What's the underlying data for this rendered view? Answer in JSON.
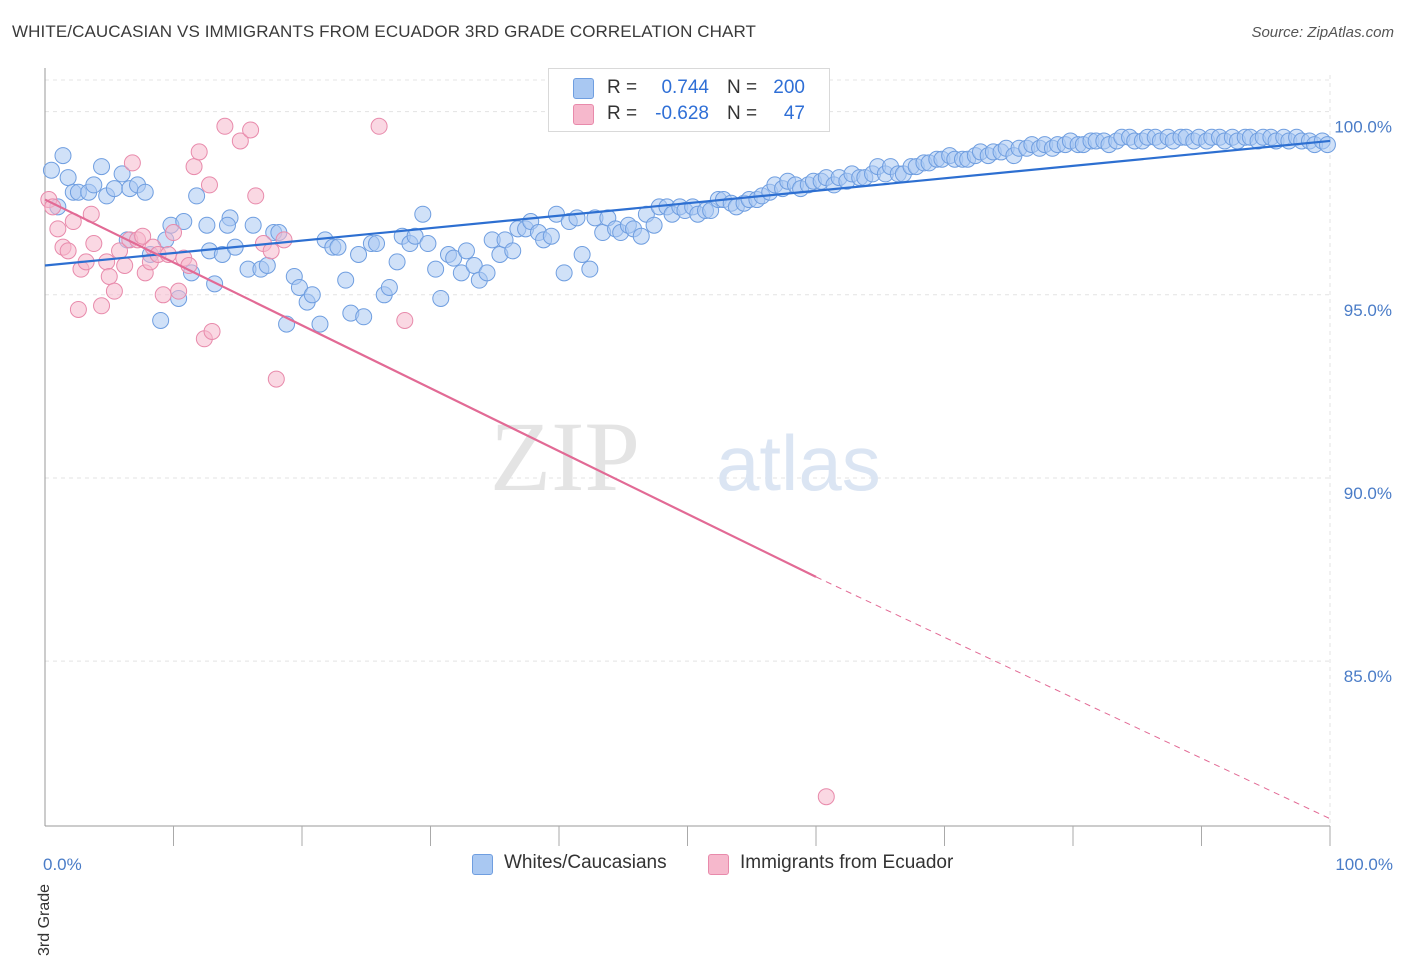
{
  "title": "WHITE/CAUCASIAN VS IMMIGRANTS FROM ECUADOR 3RD GRADE CORRELATION CHART",
  "source": "Source: ZipAtlas.com",
  "watermark": {
    "zip": "ZIP",
    "atlas": "atlas"
  },
  "legend": {
    "rows": [
      {
        "r_label": "R =",
        "r_value": "0.744",
        "n_label": "N =",
        "n_value": "200",
        "color": "#a9c8f2"
      },
      {
        "r_label": "R =",
        "r_value": "-0.628",
        "n_label": "N =",
        "n_value": "47",
        "color": "#f6b8cc"
      }
    ]
  },
  "bottom_legend": [
    {
      "label": "Whites/Caucasians",
      "color": "#a9c8f2"
    },
    {
      "label": "Immigrants from Ecuador",
      "color": "#f6b8cc"
    }
  ],
  "chart_data": {
    "type": "scatter",
    "title": "WHITE/CAUCASIAN VS IMMIGRANTS FROM ECUADOR 3RD GRADE CORRELATION CHART",
    "xlabel": "",
    "ylabel": "3rd Grade",
    "xlim": [
      0,
      100
    ],
    "ylim": [
      80.5,
      101
    ],
    "x_tick_labels": [
      "0.0%",
      "100.0%"
    ],
    "y_ticks": [
      85,
      90,
      95,
      100
    ],
    "y_tick_labels": [
      "85.0%",
      "90.0%",
      "95.0%",
      "100.0%"
    ],
    "grid": true,
    "legend_placement": "top-center",
    "colors": {
      "blue_point_fill": "#a9c8f2",
      "blue_point_stroke": "#6f9ee0",
      "blue_line": "#2d6fd1",
      "pink_point_fill": "#f6b8cc",
      "pink_point_stroke": "#e88aab",
      "pink_line": "#e26a95"
    },
    "series": [
      {
        "name": "Whites/Caucasians",
        "trend": {
          "x": [
            0,
            100
          ],
          "y": [
            95.8,
            99.2
          ]
        },
        "points": [
          [
            0.5,
            98.4
          ],
          [
            1.0,
            97.4
          ],
          [
            1.4,
            98.8
          ],
          [
            1.8,
            98.2
          ],
          [
            2.2,
            97.8
          ],
          [
            2.6,
            97.8
          ],
          [
            3.4,
            97.8
          ],
          [
            3.8,
            98.0
          ],
          [
            4.4,
            98.5
          ],
          [
            4.8,
            97.7
          ],
          [
            5.4,
            97.9
          ],
          [
            6.0,
            98.3
          ],
          [
            6.6,
            97.9
          ],
          [
            7.2,
            98.0
          ],
          [
            7.8,
            97.8
          ],
          [
            6.4,
            96.5
          ],
          [
            8.2,
            96.1
          ],
          [
            9.0,
            94.3
          ],
          [
            9.4,
            96.5
          ],
          [
            9.8,
            96.9
          ],
          [
            10.4,
            94.9
          ],
          [
            10.8,
            97.0
          ],
          [
            11.4,
            95.6
          ],
          [
            11.8,
            97.7
          ],
          [
            12.6,
            96.9
          ],
          [
            12.8,
            96.2
          ],
          [
            13.2,
            95.3
          ],
          [
            13.8,
            96.1
          ],
          [
            14.4,
            97.1
          ],
          [
            14.8,
            96.3
          ],
          [
            15.8,
            95.7
          ],
          [
            16.2,
            96.9
          ],
          [
            16.8,
            95.7
          ],
          [
            17.3,
            95.8
          ],
          [
            17.8,
            96.7
          ],
          [
            18.2,
            96.7
          ],
          [
            18.8,
            94.2
          ],
          [
            19.4,
            95.5
          ],
          [
            19.8,
            95.2
          ],
          [
            20.4,
            94.8
          ],
          [
            20.8,
            95.0
          ],
          [
            21.4,
            94.2
          ],
          [
            21.8,
            96.5
          ],
          [
            22.4,
            96.3
          ],
          [
            22.8,
            96.3
          ],
          [
            23.4,
            95.4
          ],
          [
            23.8,
            94.5
          ],
          [
            24.4,
            96.1
          ],
          [
            24.8,
            94.4
          ],
          [
            25.4,
            96.4
          ],
          [
            25.8,
            96.4
          ],
          [
            26.4,
            95.0
          ],
          [
            26.8,
            95.2
          ],
          [
            27.4,
            95.9
          ],
          [
            27.8,
            96.6
          ],
          [
            28.4,
            96.4
          ],
          [
            28.8,
            96.6
          ],
          [
            29.4,
            97.2
          ],
          [
            29.8,
            96.4
          ],
          [
            30.4,
            95.7
          ],
          [
            30.8,
            94.9
          ],
          [
            31.4,
            96.1
          ],
          [
            31.8,
            96.0
          ],
          [
            32.4,
            95.6
          ],
          [
            32.8,
            96.2
          ],
          [
            33.4,
            95.8
          ],
          [
            33.8,
            95.4
          ],
          [
            34.4,
            95.6
          ],
          [
            34.8,
            96.5
          ],
          [
            35.4,
            96.1
          ],
          [
            35.8,
            96.5
          ],
          [
            36.4,
            96.2
          ],
          [
            36.8,
            96.8
          ],
          [
            37.4,
            96.8
          ],
          [
            37.8,
            97.0
          ],
          [
            38.4,
            96.7
          ],
          [
            38.8,
            96.5
          ],
          [
            39.4,
            96.6
          ],
          [
            39.8,
            97.2
          ],
          [
            40.4,
            95.6
          ],
          [
            40.8,
            97.0
          ],
          [
            41.4,
            97.1
          ],
          [
            41.8,
            96.1
          ],
          [
            42.4,
            95.7
          ],
          [
            42.8,
            97.1
          ],
          [
            43.4,
            96.7
          ],
          [
            43.8,
            97.1
          ],
          [
            44.4,
            96.8
          ],
          [
            44.8,
            96.7
          ],
          [
            45.4,
            96.9
          ],
          [
            45.8,
            96.8
          ],
          [
            46.4,
            96.6
          ],
          [
            46.8,
            97.2
          ],
          [
            47.4,
            96.9
          ],
          [
            47.8,
            97.4
          ],
          [
            48.4,
            97.4
          ],
          [
            48.8,
            97.2
          ],
          [
            49.4,
            97.4
          ],
          [
            49.8,
            97.3
          ],
          [
            50.4,
            97.4
          ],
          [
            50.8,
            97.2
          ],
          [
            51.4,
            97.3
          ],
          [
            51.8,
            97.3
          ],
          [
            52.4,
            97.6
          ],
          [
            52.8,
            97.6
          ],
          [
            53.4,
            97.5
          ],
          [
            53.8,
            97.4
          ],
          [
            54.4,
            97.5
          ],
          [
            54.8,
            97.6
          ],
          [
            55.4,
            97.6
          ],
          [
            55.8,
            97.7
          ],
          [
            56.4,
            97.8
          ],
          [
            56.8,
            98.0
          ],
          [
            57.4,
            97.9
          ],
          [
            57.8,
            98.1
          ],
          [
            58.4,
            98.0
          ],
          [
            58.8,
            97.9
          ],
          [
            59.4,
            98.0
          ],
          [
            59.8,
            98.1
          ],
          [
            60.4,
            98.1
          ],
          [
            60.8,
            98.2
          ],
          [
            61.4,
            98.0
          ],
          [
            61.8,
            98.2
          ],
          [
            62.4,
            98.1
          ],
          [
            62.8,
            98.3
          ],
          [
            63.4,
            98.2
          ],
          [
            63.8,
            98.2
          ],
          [
            64.4,
            98.3
          ],
          [
            64.8,
            98.5
          ],
          [
            65.4,
            98.3
          ],
          [
            65.8,
            98.5
          ],
          [
            66.4,
            98.3
          ],
          [
            66.8,
            98.3
          ],
          [
            67.4,
            98.5
          ],
          [
            67.8,
            98.5
          ],
          [
            68.4,
            98.6
          ],
          [
            68.8,
            98.6
          ],
          [
            69.4,
            98.7
          ],
          [
            69.8,
            98.7
          ],
          [
            70.4,
            98.8
          ],
          [
            70.8,
            98.7
          ],
          [
            71.4,
            98.7
          ],
          [
            71.8,
            98.7
          ],
          [
            72.4,
            98.8
          ],
          [
            72.8,
            98.9
          ],
          [
            73.4,
            98.8
          ],
          [
            73.8,
            98.9
          ],
          [
            74.4,
            98.9
          ],
          [
            74.8,
            99.0
          ],
          [
            75.4,
            98.8
          ],
          [
            75.8,
            99.0
          ],
          [
            76.4,
            99.0
          ],
          [
            76.8,
            99.1
          ],
          [
            77.4,
            99.0
          ],
          [
            77.8,
            99.1
          ],
          [
            78.4,
            99.0
          ],
          [
            78.8,
            99.1
          ],
          [
            79.4,
            99.1
          ],
          [
            79.8,
            99.2
          ],
          [
            80.4,
            99.1
          ],
          [
            80.8,
            99.1
          ],
          [
            81.4,
            99.2
          ],
          [
            81.8,
            99.2
          ],
          [
            82.4,
            99.2
          ],
          [
            82.8,
            99.1
          ],
          [
            83.4,
            99.2
          ],
          [
            83.8,
            99.3
          ],
          [
            84.4,
            99.3
          ],
          [
            84.8,
            99.2
          ],
          [
            85.4,
            99.2
          ],
          [
            85.8,
            99.3
          ],
          [
            86.4,
            99.3
          ],
          [
            86.8,
            99.2
          ],
          [
            87.4,
            99.3
          ],
          [
            87.8,
            99.2
          ],
          [
            88.4,
            99.3
          ],
          [
            88.8,
            99.3
          ],
          [
            89.4,
            99.2
          ],
          [
            89.8,
            99.3
          ],
          [
            90.4,
            99.2
          ],
          [
            90.8,
            99.3
          ],
          [
            91.4,
            99.3
          ],
          [
            91.8,
            99.2
          ],
          [
            92.4,
            99.3
          ],
          [
            92.8,
            99.2
          ],
          [
            93.4,
            99.3
          ],
          [
            93.8,
            99.3
          ],
          [
            94.4,
            99.2
          ],
          [
            94.8,
            99.3
          ],
          [
            95.4,
            99.3
          ],
          [
            95.8,
            99.2
          ],
          [
            96.4,
            99.3
          ],
          [
            96.8,
            99.2
          ],
          [
            97.4,
            99.3
          ],
          [
            97.8,
            99.2
          ],
          [
            98.4,
            99.2
          ],
          [
            98.8,
            99.1
          ],
          [
            99.4,
            99.2
          ],
          [
            99.8,
            99.1
          ],
          [
            14.2,
            96.9
          ]
        ]
      },
      {
        "name": "Immigrants from Ecuador",
        "trend": {
          "x": [
            0,
            60
          ],
          "y": [
            97.6,
            87.3
          ]
        },
        "trend_extension": {
          "x": [
            60,
            100
          ],
          "y": [
            87.3,
            80.7
          ]
        },
        "points": [
          [
            0.3,
            97.6
          ],
          [
            0.6,
            97.4
          ],
          [
            1.0,
            96.8
          ],
          [
            1.4,
            96.3
          ],
          [
            1.8,
            96.2
          ],
          [
            2.2,
            97.0
          ],
          [
            2.6,
            94.6
          ],
          [
            2.8,
            95.7
          ],
          [
            3.2,
            95.9
          ],
          [
            3.6,
            97.2
          ],
          [
            3.8,
            96.4
          ],
          [
            4.4,
            94.7
          ],
          [
            4.8,
            95.9
          ],
          [
            5.0,
            95.5
          ],
          [
            5.4,
            95.1
          ],
          [
            5.8,
            96.2
          ],
          [
            6.2,
            95.8
          ],
          [
            6.6,
            96.5
          ],
          [
            6.8,
            98.6
          ],
          [
            7.2,
            96.5
          ],
          [
            7.6,
            96.6
          ],
          [
            7.8,
            95.6
          ],
          [
            8.2,
            95.9
          ],
          [
            8.4,
            96.3
          ],
          [
            8.8,
            96.1
          ],
          [
            9.2,
            95.0
          ],
          [
            9.6,
            96.1
          ],
          [
            10.0,
            96.7
          ],
          [
            10.4,
            95.1
          ],
          [
            10.8,
            96.0
          ],
          [
            11.2,
            95.8
          ],
          [
            11.6,
            98.5
          ],
          [
            12.0,
            98.9
          ],
          [
            12.4,
            93.8
          ],
          [
            12.8,
            98.0
          ],
          [
            13.0,
            94.0
          ],
          [
            14.0,
            99.6
          ],
          [
            15.2,
            99.2
          ],
          [
            16.0,
            99.5
          ],
          [
            16.4,
            97.7
          ],
          [
            17.0,
            96.4
          ],
          [
            17.6,
            96.2
          ],
          [
            18.0,
            92.7
          ],
          [
            18.6,
            96.5
          ],
          [
            26.0,
            99.6
          ],
          [
            28.0,
            94.3
          ],
          [
            60.8,
            81.3
          ]
        ]
      }
    ]
  }
}
